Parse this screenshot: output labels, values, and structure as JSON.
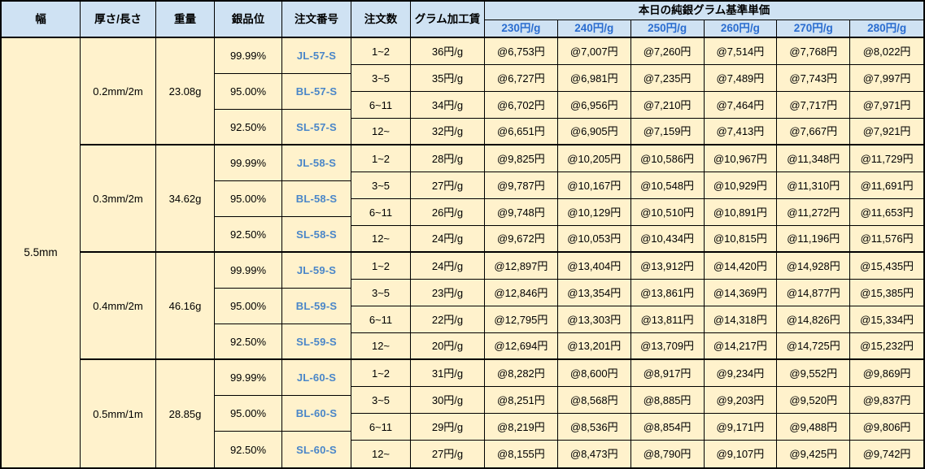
{
  "page": {
    "background": "#ffffff"
  },
  "table": {
    "title_group": "本日の純銀グラム基準単価",
    "headers": {
      "width": "幅",
      "thickness_length": "厚さ/長さ",
      "weight": "重量",
      "purity": "銀品位",
      "order_no": "注文番号",
      "order_qty": "注文数",
      "gram_fee": "グラム加工賃"
    },
    "price_cols": [
      "230円/g",
      "240円/g",
      "250円/g",
      "260円/g",
      "270円/g",
      "280円/g"
    ],
    "width_value": "5.5mm",
    "colors": {
      "header_bg": "#cfe2f3",
      "cell_bg": "#fff2cc",
      "border": "#000000",
      "subheader_text": "#2a6dd0",
      "order_no_text": "#4a86c8"
    },
    "blocks": [
      {
        "thickness_length": "0.2mm/2m",
        "weight": "23.08g",
        "purities": [
          {
            "purity": "99.99%",
            "order_no": "JL-57-S"
          },
          {
            "purity": "95.00%",
            "order_no": "BL-57-S"
          },
          {
            "purity": "92.50%",
            "order_no": "SL-57-S"
          }
        ],
        "rows": [
          {
            "qty": "1~2",
            "fee": "36円/g",
            "prices": [
              "@6,753円",
              "@7,007円",
              "@7,260円",
              "@7,514円",
              "@7,768円",
              "@8,022円"
            ]
          },
          {
            "qty": "3~5",
            "fee": "35円/g",
            "prices": [
              "@6,727円",
              "@6,981円",
              "@7,235円",
              "@7,489円",
              "@7,743円",
              "@7,997円"
            ]
          },
          {
            "qty": "6~11",
            "fee": "34円/g",
            "prices": [
              "@6,702円",
              "@6,956円",
              "@7,210円",
              "@7,464円",
              "@7,717円",
              "@7,971円"
            ]
          },
          {
            "qty": "12~",
            "fee": "32円/g",
            "prices": [
              "@6,651円",
              "@6,905円",
              "@7,159円",
              "@7,413円",
              "@7,667円",
              "@7,921円"
            ]
          }
        ]
      },
      {
        "thickness_length": "0.3mm/2m",
        "weight": "34.62g",
        "purities": [
          {
            "purity": "99.99%",
            "order_no": "JL-58-S"
          },
          {
            "purity": "95.00%",
            "order_no": "BL-58-S"
          },
          {
            "purity": "92.50%",
            "order_no": "SL-58-S"
          }
        ],
        "rows": [
          {
            "qty": "1~2",
            "fee": "28円/g",
            "prices": [
              "@9,825円",
              "@10,205円",
              "@10,586円",
              "@10,967円",
              "@11,348円",
              "@11,729円"
            ]
          },
          {
            "qty": "3~5",
            "fee": "27円/g",
            "prices": [
              "@9,787円",
              "@10,167円",
              "@10,548円",
              "@10,929円",
              "@11,310円",
              "@11,691円"
            ]
          },
          {
            "qty": "6~11",
            "fee": "26円/g",
            "prices": [
              "@9,748円",
              "@10,129円",
              "@10,510円",
              "@10,891円",
              "@11,272円",
              "@11,653円"
            ]
          },
          {
            "qty": "12~",
            "fee": "24円/g",
            "prices": [
              "@9,672円",
              "@10,053円",
              "@10,434円",
              "@10,815円",
              "@11,196円",
              "@11,576円"
            ]
          }
        ]
      },
      {
        "thickness_length": "0.4mm/2m",
        "weight": "46.16g",
        "purities": [
          {
            "purity": "99.99%",
            "order_no": "JL-59-S"
          },
          {
            "purity": "95.00%",
            "order_no": "BL-59-S"
          },
          {
            "purity": "92.50%",
            "order_no": "SL-59-S"
          }
        ],
        "rows": [
          {
            "qty": "1~2",
            "fee": "24円/g",
            "prices": [
              "@12,897円",
              "@13,404円",
              "@13,912円",
              "@14,420円",
              "@14,928円",
              "@15,435円"
            ]
          },
          {
            "qty": "3~5",
            "fee": "23円/g",
            "prices": [
              "@12,846円",
              "@13,354円",
              "@13,861円",
              "@14,369円",
              "@14,877円",
              "@15,385円"
            ]
          },
          {
            "qty": "6~11",
            "fee": "22円/g",
            "prices": [
              "@12,795円",
              "@13,303円",
              "@13,811円",
              "@14,318円",
              "@14,826円",
              "@15,334円"
            ]
          },
          {
            "qty": "12~",
            "fee": "20円/g",
            "prices": [
              "@12,694円",
              "@13,201円",
              "@13,709円",
              "@14,217円",
              "@14,725円",
              "@15,232円"
            ]
          }
        ]
      },
      {
        "thickness_length": "0.5mm/1m",
        "weight": "28.85g",
        "purities": [
          {
            "purity": "99.99%",
            "order_no": "JL-60-S"
          },
          {
            "purity": "95.00%",
            "order_no": "BL-60-S"
          },
          {
            "purity": "92.50%",
            "order_no": "SL-60-S"
          }
        ],
        "rows": [
          {
            "qty": "1~2",
            "fee": "31円/g",
            "prices": [
              "@8,282円",
              "@8,600円",
              "@8,917円",
              "@9,234円",
              "@9,552円",
              "@9,869円"
            ]
          },
          {
            "qty": "3~5",
            "fee": "30円/g",
            "prices": [
              "@8,251円",
              "@8,568円",
              "@8,885円",
              "@9,203円",
              "@9,520円",
              "@9,837円"
            ]
          },
          {
            "qty": "6~11",
            "fee": "29円/g",
            "prices": [
              "@8,219円",
              "@8,536円",
              "@8,854円",
              "@9,171円",
              "@9,488円",
              "@9,806円"
            ]
          },
          {
            "qty": "12~",
            "fee": "27円/g",
            "prices": [
              "@8,155円",
              "@8,473円",
              "@8,790円",
              "@9,107円",
              "@9,425円",
              "@9,742円"
            ]
          }
        ]
      }
    ]
  }
}
